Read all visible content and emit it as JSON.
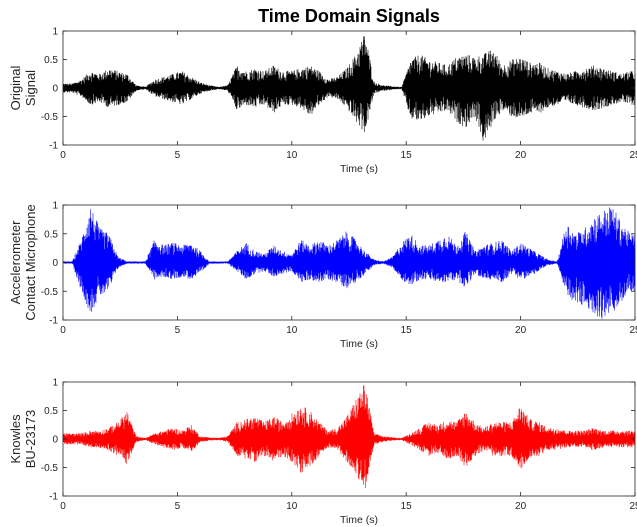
{
  "figure": {
    "title": "Time Domain Signals"
  },
  "chart_data": [
    {
      "type": "line",
      "title": "Time Domain Signals",
      "xlabel": "Time (s)",
      "ylabel": [
        "Original",
        "Signal"
      ],
      "xlim": [
        0,
        25
      ],
      "ylim": [
        -1,
        1
      ],
      "xticks": [
        "0",
        "5",
        "10",
        "15",
        "20",
        "25"
      ],
      "yticks": [
        "1",
        "0.5",
        "0",
        "-0.5",
        "-1"
      ],
      "color": "#000000",
      "grid": false,
      "series": [
        {
          "x": [
            0.0,
            0.4,
            0.8,
            1.2,
            1.6,
            2.0,
            2.4,
            2.8,
            3.2,
            3.6,
            4.0,
            4.4,
            4.8,
            5.2,
            5.6,
            6.0,
            6.4,
            6.8,
            7.2,
            7.6,
            8.0,
            8.4,
            8.8,
            9.2,
            9.6,
            10.0,
            10.4,
            10.8,
            11.2,
            11.6,
            12.0,
            12.4,
            12.8,
            13.2,
            13.6,
            14.0,
            14.4,
            14.8,
            15.2,
            15.6,
            16.0,
            16.4,
            16.8,
            17.2,
            17.6,
            18.0,
            18.4,
            18.8,
            19.2,
            19.6,
            20.0,
            20.4,
            20.8,
            21.2,
            21.6,
            22.0,
            22.4,
            22.8,
            23.2,
            23.6,
            24.0,
            24.4,
            24.8
          ],
          "upper": [
            0.08,
            0.08,
            0.15,
            0.3,
            0.25,
            0.35,
            0.3,
            0.25,
            0.05,
            0.02,
            0.15,
            0.2,
            0.25,
            0.3,
            0.2,
            0.1,
            0.05,
            0.02,
            0.05,
            0.4,
            0.3,
            0.35,
            0.3,
            0.4,
            0.3,
            0.3,
            0.35,
            0.4,
            0.3,
            0.15,
            0.2,
            0.35,
            0.6,
            1.0,
            0.1,
            0.05,
            0.03,
            0.02,
            0.5,
            0.6,
            0.5,
            0.45,
            0.4,
            0.55,
            0.6,
            0.55,
            0.6,
            0.7,
            0.4,
            0.5,
            0.55,
            0.45,
            0.45,
            0.35,
            0.3,
            0.25,
            0.3,
            0.35,
            0.4,
            0.35,
            0.3,
            0.25,
            0.3
          ],
          "lower": [
            -0.08,
            -0.08,
            -0.15,
            -0.3,
            -0.25,
            -0.35,
            -0.3,
            -0.25,
            -0.05,
            -0.02,
            -0.15,
            -0.2,
            -0.25,
            -0.3,
            -0.2,
            -0.1,
            -0.05,
            -0.02,
            -0.05,
            -0.4,
            -0.3,
            -0.35,
            -0.3,
            -0.45,
            -0.3,
            -0.3,
            -0.35,
            -0.5,
            -0.3,
            -0.15,
            -0.2,
            -0.35,
            -0.6,
            -0.8,
            -0.1,
            -0.05,
            -0.03,
            -0.02,
            -0.55,
            -0.6,
            -0.5,
            -0.45,
            -0.4,
            -0.6,
            -0.7,
            -0.5,
            -1.0,
            -0.6,
            -0.4,
            -0.5,
            -0.55,
            -0.45,
            -0.45,
            -0.35,
            -0.3,
            -0.25,
            -0.3,
            -0.35,
            -0.4,
            -0.35,
            -0.3,
            -0.25,
            -0.3
          ]
        }
      ]
    },
    {
      "type": "line",
      "xlabel": "Time (s)",
      "ylabel": [
        "Accelerometer",
        "Contact Microphone"
      ],
      "xlim": [
        0,
        25
      ],
      "ylim": [
        -1,
        1
      ],
      "xticks": [
        "0",
        "5",
        "10",
        "15",
        "20",
        "25"
      ],
      "yticks": [
        "1",
        "0.5",
        "0",
        "-0.5",
        "-1"
      ],
      "color": "#0000ff",
      "grid": false,
      "series": [
        {
          "x": [
            0.0,
            0.4,
            0.8,
            1.2,
            1.6,
            2.0,
            2.4,
            2.8,
            3.2,
            3.6,
            4.0,
            4.4,
            4.8,
            5.2,
            5.6,
            6.0,
            6.4,
            6.8,
            7.2,
            7.6,
            8.0,
            8.4,
            8.8,
            9.2,
            9.6,
            10.0,
            10.4,
            10.8,
            11.2,
            11.6,
            12.0,
            12.4,
            12.8,
            13.2,
            13.6,
            14.0,
            14.4,
            14.8,
            15.2,
            15.6,
            16.0,
            16.4,
            16.8,
            17.2,
            17.6,
            18.0,
            18.4,
            18.8,
            19.2,
            19.6,
            20.0,
            20.4,
            20.8,
            21.2,
            21.6,
            22.0,
            22.4,
            22.8,
            23.2,
            23.6,
            24.0,
            24.4,
            24.8
          ],
          "upper": [
            0.02,
            0.02,
            0.4,
            1.0,
            0.6,
            0.5,
            0.1,
            0.02,
            0.02,
            0.02,
            0.4,
            0.3,
            0.35,
            0.3,
            0.35,
            0.2,
            0.02,
            0.02,
            0.02,
            0.2,
            0.35,
            0.2,
            0.15,
            0.3,
            0.2,
            0.15,
            0.4,
            0.3,
            0.4,
            0.3,
            0.4,
            0.55,
            0.4,
            0.2,
            0.05,
            0.02,
            0.1,
            0.35,
            0.5,
            0.3,
            0.3,
            0.4,
            0.5,
            0.3,
            0.55,
            0.2,
            0.3,
            0.35,
            0.4,
            0.2,
            0.35,
            0.25,
            0.15,
            0.05,
            0.02,
            0.7,
            0.5,
            0.6,
            0.8,
            0.9,
            1.0,
            0.7,
            0.5
          ],
          "lower": [
            -0.02,
            -0.02,
            -0.5,
            -0.9,
            -0.6,
            -0.5,
            -0.1,
            -0.02,
            -0.02,
            -0.02,
            -0.3,
            -0.25,
            -0.3,
            -0.25,
            -0.3,
            -0.2,
            -0.02,
            -0.02,
            -0.02,
            -0.15,
            -0.3,
            -0.2,
            -0.15,
            -0.25,
            -0.2,
            -0.15,
            -0.35,
            -0.3,
            -0.35,
            -0.3,
            -0.35,
            -0.45,
            -0.35,
            -0.2,
            -0.05,
            -0.02,
            -0.1,
            -0.3,
            -0.4,
            -0.3,
            -0.3,
            -0.35,
            -0.35,
            -0.3,
            -0.45,
            -0.2,
            -0.3,
            -0.3,
            -0.35,
            -0.2,
            -0.3,
            -0.25,
            -0.15,
            -0.05,
            -0.02,
            -0.6,
            -0.7,
            -0.8,
            -0.9,
            -1.0,
            -0.9,
            -0.7,
            -0.5
          ]
        }
      ]
    },
    {
      "type": "line",
      "xlabel": "Time (s)",
      "ylabel": [
        "Knowles",
        "BU-23173"
      ],
      "xlim": [
        0,
        25
      ],
      "ylim": [
        -1,
        1
      ],
      "xticks": [
        "0",
        "5",
        "10",
        "15",
        "20",
        "25"
      ],
      "yticks": [
        "1",
        "0.5",
        "0",
        "-0.5",
        "-1"
      ],
      "color": "#ff0000",
      "grid": false,
      "series": [
        {
          "x": [
            0.0,
            0.4,
            0.8,
            1.2,
            1.6,
            2.0,
            2.4,
            2.8,
            3.2,
            3.6,
            4.0,
            4.4,
            4.8,
            5.2,
            5.6,
            6.0,
            6.4,
            6.8,
            7.2,
            7.6,
            8.0,
            8.4,
            8.8,
            9.2,
            9.6,
            10.0,
            10.4,
            10.8,
            11.2,
            11.6,
            12.0,
            12.4,
            12.8,
            13.2,
            13.6,
            14.0,
            14.4,
            14.8,
            15.2,
            15.6,
            16.0,
            16.4,
            16.8,
            17.2,
            17.6,
            18.0,
            18.4,
            18.8,
            19.2,
            19.6,
            20.0,
            20.4,
            20.8,
            21.2,
            21.6,
            22.0,
            22.4,
            22.8,
            23.2,
            23.6,
            24.0,
            24.4,
            24.8
          ],
          "upper": [
            0.1,
            0.1,
            0.1,
            0.15,
            0.15,
            0.2,
            0.3,
            0.5,
            0.05,
            0.02,
            0.1,
            0.15,
            0.2,
            0.15,
            0.25,
            0.05,
            0.03,
            0.02,
            0.05,
            0.3,
            0.35,
            0.4,
            0.3,
            0.4,
            0.3,
            0.45,
            0.6,
            0.5,
            0.3,
            0.15,
            0.2,
            0.4,
            0.7,
            1.0,
            0.1,
            0.05,
            0.03,
            0.02,
            0.1,
            0.2,
            0.3,
            0.25,
            0.35,
            0.3,
            0.5,
            0.3,
            0.2,
            0.3,
            0.3,
            0.3,
            0.6,
            0.35,
            0.3,
            0.2,
            0.2,
            0.15,
            0.15,
            0.15,
            0.2,
            0.15,
            0.15,
            0.15,
            0.15
          ],
          "lower": [
            -0.1,
            -0.1,
            -0.1,
            -0.15,
            -0.15,
            -0.2,
            -0.3,
            -0.45,
            -0.05,
            -0.02,
            -0.1,
            -0.15,
            -0.2,
            -0.15,
            -0.25,
            -0.05,
            -0.03,
            -0.02,
            -0.05,
            -0.3,
            -0.35,
            -0.4,
            -0.3,
            -0.4,
            -0.3,
            -0.4,
            -0.6,
            -0.5,
            -0.3,
            -0.15,
            -0.2,
            -0.4,
            -0.6,
            -0.95,
            -0.1,
            -0.05,
            -0.03,
            -0.02,
            -0.1,
            -0.2,
            -0.3,
            -0.25,
            -0.35,
            -0.3,
            -0.5,
            -0.3,
            -0.2,
            -0.3,
            -0.3,
            -0.3,
            -0.55,
            -0.35,
            -0.3,
            -0.2,
            -0.2,
            -0.15,
            -0.15,
            -0.15,
            -0.2,
            -0.15,
            -0.15,
            -0.15,
            -0.15
          ]
        }
      ]
    }
  ]
}
